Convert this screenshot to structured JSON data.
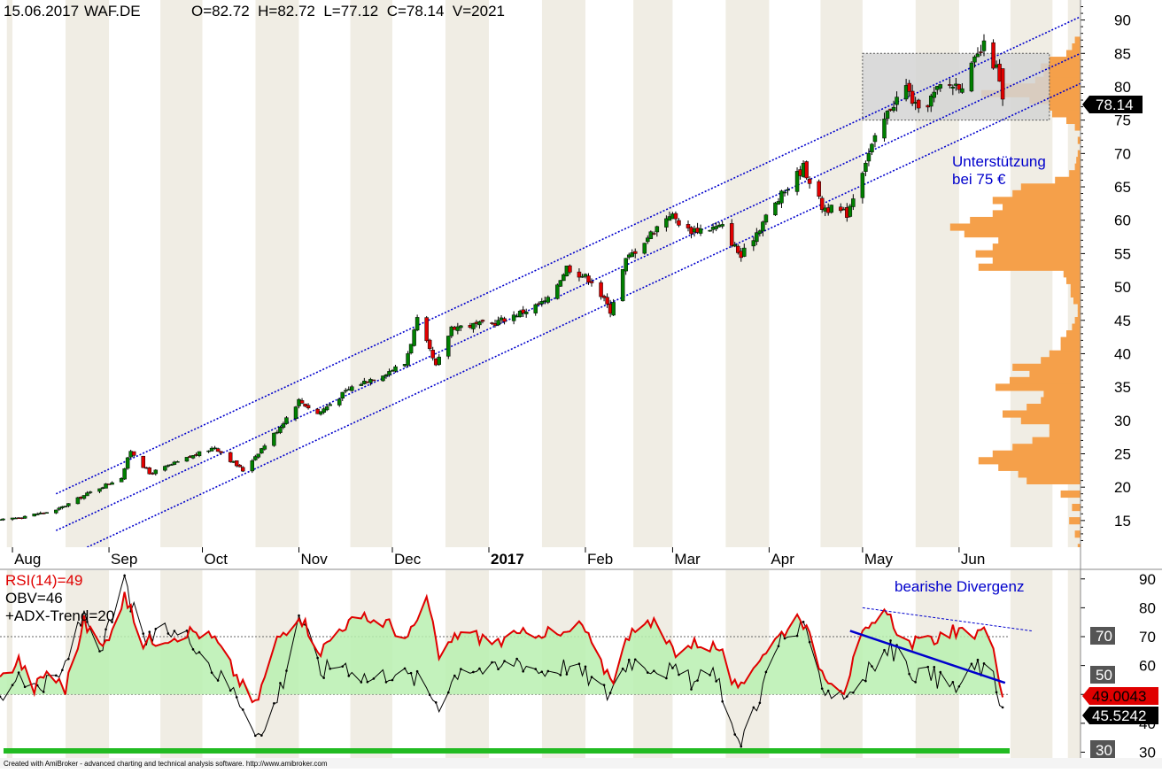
{
  "header": {
    "date": "15.06.2017",
    "symbol": "WAF.DE",
    "ohlcv": "O=82.72  H=82.72  L=77.12  C=78.14  V=2021"
  },
  "price_panel": {
    "y_ticks": [
      15,
      20,
      25,
      30,
      35,
      40,
      45,
      50,
      55,
      60,
      65,
      70,
      75,
      80,
      85,
      90
    ],
    "last_price_label": "78.14",
    "annotation_line1": "Unterstützung",
    "annotation_line2": "bei 75 €",
    "months": [
      "Aug",
      "Sep",
      "Oct",
      "Nov",
      "Dec",
      "2017",
      "Feb",
      "Mar",
      "Apr",
      "May",
      "Jun"
    ]
  },
  "indicator_panel": {
    "rsi_label": "RSI(14)=49",
    "obv_label": "OBV=46",
    "adx_label": "+ADX-Trend=20",
    "annotation": "bearishe Divergenz",
    "y_ticks": [
      30,
      40,
      50,
      60,
      70,
      80,
      90
    ],
    "level_labels": [
      "70",
      "50",
      "30"
    ],
    "rsi_value_label": "49.0043",
    "obv_value_label": "45.5242"
  },
  "footer": "Created with AmiBroker - advanced charting and technical analysis software. http://www.amibroker.com",
  "colors": {
    "up_candle": "#008000",
    "down_candle": "#e00000",
    "channel": "#0000cc",
    "volume_profile": "#f5a04a",
    "rsi_line": "#e00000",
    "obv_line": "#000000",
    "rsi_fill": "#b8f0b0",
    "band_shade": "#f0ede4"
  },
  "chart_data": [
    {
      "type": "candlestick",
      "title": "15.06.2017 WAF.DE",
      "ylim": [
        11,
        93
      ],
      "x_range": [
        "2016-07-28",
        "2017-07-10"
      ],
      "price_waypoints": [
        [
          "2016-07-28",
          15.0
        ],
        [
          "2016-08-15",
          16.5
        ],
        [
          "2016-08-25",
          19.0
        ],
        [
          "2016-09-05",
          21.5
        ],
        [
          "2016-09-08",
          25.5
        ],
        [
          "2016-09-14",
          22.0
        ],
        [
          "2016-09-27",
          24.5
        ],
        [
          "2016-10-05",
          26.0
        ],
        [
          "2016-10-14",
          22.5
        ],
        [
          "2016-10-25",
          28.5
        ],
        [
          "2016-11-01",
          33.0
        ],
        [
          "2016-11-07",
          31.0
        ],
        [
          "2016-11-18",
          35.0
        ],
        [
          "2016-11-28",
          37.0
        ],
        [
          "2016-12-05",
          38.5
        ],
        [
          "2016-12-09",
          45.0
        ],
        [
          "2016-12-15",
          38.0
        ],
        [
          "2016-12-20",
          44.0
        ],
        [
          "2017-01-02",
          44.5
        ],
        [
          "2017-01-13",
          46.5
        ],
        [
          "2017-01-20",
          48.0
        ],
        [
          "2017-01-26",
          53.0
        ],
        [
          "2017-02-03",
          51.0
        ],
        [
          "2017-02-09",
          46.5
        ],
        [
          "2017-02-14",
          54.0
        ],
        [
          "2017-02-28",
          61.0
        ],
        [
          "2017-03-06",
          58.5
        ],
        [
          "2017-03-17",
          59.0
        ],
        [
          "2017-03-23",
          54.5
        ],
        [
          "2017-03-31",
          60.5
        ],
        [
          "2017-04-07",
          65.0
        ],
        [
          "2017-04-12",
          68.0
        ],
        [
          "2017-04-18",
          62.0
        ],
        [
          "2017-04-26",
          61.0
        ],
        [
          "2017-05-02",
          69.0
        ],
        [
          "2017-05-10",
          77.0
        ],
        [
          "2017-05-15",
          80.0
        ],
        [
          "2017-05-19",
          76.0
        ],
        [
          "2017-05-26",
          80.0
        ],
        [
          "2017-06-02",
          80.5
        ],
        [
          "2017-06-09",
          86.0
        ],
        [
          "2017-06-13",
          82.7
        ],
        [
          "2017-06-15",
          78.14
        ]
      ],
      "last_bar": {
        "date": "2017-06-15",
        "open": 82.72,
        "high": 82.72,
        "low": 77.12,
        "close": 78.14,
        "volume": 2021
      },
      "channel_lines": [
        [
          [
            "2016-08-15",
            19.0
          ],
          [
            "2017-07-10",
            90.5
          ]
        ],
        [
          [
            "2016-08-15",
            13.5
          ],
          [
            "2017-07-10",
            85.0
          ]
        ],
        [
          [
            "2016-08-25",
            11.0
          ],
          [
            "2017-07-10",
            80.5
          ]
        ]
      ],
      "support_box": {
        "x": [
          "2017-05-01",
          "2017-06-30"
        ],
        "y": [
          75.0,
          85.0
        ]
      },
      "volume_profile": [
        [
          11,
          0.02
        ],
        [
          13,
          0.04
        ],
        [
          15,
          0.08
        ],
        [
          17,
          0.06
        ],
        [
          19,
          0.14
        ],
        [
          21,
          0.38
        ],
        [
          22,
          0.44
        ],
        [
          23,
          0.58
        ],
        [
          24,
          0.72
        ],
        [
          25,
          0.62
        ],
        [
          26,
          0.48
        ],
        [
          27,
          0.34
        ],
        [
          28,
          0.22
        ],
        [
          29,
          0.22
        ],
        [
          30,
          0.42
        ],
        [
          31,
          0.55
        ],
        [
          32,
          0.38
        ],
        [
          33,
          0.28
        ],
        [
          34,
          0.26
        ],
        [
          35,
          0.6
        ],
        [
          36,
          0.5
        ],
        [
          37,
          0.36
        ],
        [
          38,
          0.48
        ],
        [
          39,
          0.28
        ],
        [
          40,
          0.22
        ],
        [
          41,
          0.14
        ],
        [
          42,
          0.14
        ],
        [
          43,
          0.1
        ],
        [
          44,
          0.06
        ],
        [
          45,
          0.04
        ],
        [
          46,
          0.02
        ],
        [
          47,
          0.02
        ],
        [
          48,
          0.05
        ],
        [
          49,
          0.07
        ],
        [
          50,
          0.07
        ],
        [
          51,
          0.1
        ],
        [
          52,
          0.12
        ],
        [
          53,
          0.72
        ],
        [
          54,
          0.62
        ],
        [
          55,
          0.74
        ],
        [
          56,
          0.62
        ],
        [
          57,
          0.58
        ],
        [
          58,
          0.82
        ],
        [
          59,
          0.92
        ],
        [
          60,
          0.78
        ],
        [
          61,
          0.62
        ],
        [
          62,
          0.55
        ],
        [
          63,
          0.62
        ],
        [
          64,
          0.48
        ],
        [
          65,
          0.42
        ],
        [
          66,
          0.18
        ],
        [
          67,
          0.08
        ],
        [
          68,
          0.04
        ],
        [
          69,
          0.03
        ],
        [
          70,
          0.02
        ],
        [
          72,
          0.02
        ],
        [
          74,
          0.04
        ],
        [
          75,
          0.1
        ],
        [
          76,
          0.2
        ],
        [
          77,
          0.22
        ],
        [
          78,
          0.36
        ],
        [
          79,
          0.7
        ],
        [
          80,
          0.54
        ],
        [
          81,
          0.32
        ],
        [
          82,
          0.26
        ],
        [
          83,
          0.28
        ],
        [
          84,
          0.22
        ],
        [
          85,
          0.1
        ],
        [
          86,
          0.06
        ],
        [
          87,
          0.04
        ]
      ]
    },
    {
      "type": "line",
      "title": "RSI(14) / OBV / +ADX-Trend",
      "ylim": [
        28,
        93
      ],
      "reference_lines": [
        70,
        50
      ],
      "series": [
        {
          "name": "RSI(14)",
          "last": 49.0043,
          "points": [
            [
              "2016-07-28",
              55
            ],
            [
              "2016-08-03",
              62
            ],
            [
              "2016-08-08",
              52
            ],
            [
              "2016-08-12",
              58
            ],
            [
              "2016-08-18",
              52
            ],
            [
              "2016-08-24",
              75
            ],
            [
              "2016-08-30",
              66
            ],
            [
              "2016-09-06",
              84
            ],
            [
              "2016-09-12",
              68
            ],
            [
              "2016-09-20",
              70
            ],
            [
              "2016-09-28",
              72
            ],
            [
              "2016-10-05",
              69
            ],
            [
              "2016-10-11",
              58
            ],
            [
              "2016-10-18",
              46
            ],
            [
              "2016-10-25",
              69
            ],
            [
              "2016-11-01",
              78
            ],
            [
              "2016-11-08",
              65
            ],
            [
              "2016-11-15",
              74
            ],
            [
              "2016-11-22",
              76
            ],
            [
              "2016-11-29",
              75
            ],
            [
              "2016-12-06",
              69
            ],
            [
              "2016-12-12",
              83
            ],
            [
              "2016-12-16",
              63
            ],
            [
              "2016-12-23",
              72
            ],
            [
              "2017-01-03",
              68
            ],
            [
              "2017-01-10",
              70
            ],
            [
              "2017-01-17",
              72
            ],
            [
              "2017-01-24",
              70
            ],
            [
              "2017-01-31",
              74
            ],
            [
              "2017-02-06",
              60
            ],
            [
              "2017-02-10",
              56
            ],
            [
              "2017-02-16",
              74
            ],
            [
              "2017-02-23",
              74
            ],
            [
              "2017-03-02",
              65
            ],
            [
              "2017-03-09",
              68
            ],
            [
              "2017-03-16",
              66
            ],
            [
              "2017-03-22",
              50
            ],
            [
              "2017-03-28",
              62
            ],
            [
              "2017-04-04",
              70
            ],
            [
              "2017-04-11",
              78
            ],
            [
              "2017-04-18",
              58
            ],
            [
              "2017-04-25",
              52
            ],
            [
              "2017-05-01",
              70
            ],
            [
              "2017-05-09",
              78
            ],
            [
              "2017-05-15",
              68
            ],
            [
              "2017-05-22",
              68
            ],
            [
              "2017-05-29",
              72
            ],
            [
              "2017-06-05",
              70
            ],
            [
              "2017-06-09",
              75
            ],
            [
              "2017-06-12",
              64
            ],
            [
              "2017-06-15",
              49
            ]
          ]
        },
        {
          "name": "OBV",
          "last": 45.5242,
          "points": [
            [
              "2016-07-28",
              48
            ],
            [
              "2016-08-03",
              58
            ],
            [
              "2016-08-09",
              52
            ],
            [
              "2016-08-16",
              55
            ],
            [
              "2016-08-24",
              78
            ],
            [
              "2016-08-30",
              66
            ],
            [
              "2016-09-06",
              89
            ],
            [
              "2016-09-12",
              68
            ],
            [
              "2016-09-20",
              72
            ],
            [
              "2016-09-28",
              69
            ],
            [
              "2016-10-05",
              58
            ],
            [
              "2016-10-12",
              50
            ],
            [
              "2016-10-20",
              35
            ],
            [
              "2016-10-27",
              55
            ],
            [
              "2016-11-01",
              78
            ],
            [
              "2016-11-08",
              58
            ],
            [
              "2016-11-15",
              61
            ],
            [
              "2016-11-24",
              55
            ],
            [
              "2016-12-01",
              58
            ],
            [
              "2016-12-09",
              55
            ],
            [
              "2016-12-16",
              47
            ],
            [
              "2016-12-23",
              60
            ],
            [
              "2017-01-02",
              58
            ],
            [
              "2017-01-10",
              62
            ],
            [
              "2017-01-18",
              58
            ],
            [
              "2017-01-26",
              60
            ],
            [
              "2017-02-02",
              56
            ],
            [
              "2017-02-08",
              50
            ],
            [
              "2017-02-15",
              62
            ],
            [
              "2017-02-22",
              60
            ],
            [
              "2017-03-01",
              58
            ],
            [
              "2017-03-08",
              54
            ],
            [
              "2017-03-15",
              58
            ],
            [
              "2017-03-22",
              32
            ],
            [
              "2017-03-29",
              50
            ],
            [
              "2017-04-05",
              70
            ],
            [
              "2017-04-12",
              72
            ],
            [
              "2017-04-19",
              52
            ],
            [
              "2017-04-26",
              50
            ],
            [
              "2017-05-03",
              58
            ],
            [
              "2017-05-10",
              66
            ],
            [
              "2017-05-17",
              58
            ],
            [
              "2017-05-24",
              56
            ],
            [
              "2017-05-31",
              52
            ],
            [
              "2017-06-07",
              60
            ],
            [
              "2017-06-12",
              55
            ],
            [
              "2017-06-15",
              45.5
            ]
          ]
        },
        {
          "name": "+ADX-Trend",
          "last": 20
        }
      ],
      "divergence": {
        "price_line": [
          [
            "2017-05-01",
            78
          ],
          [
            "2017-06-30",
            72
          ]
        ],
        "indicator_line": [
          [
            "2017-04-27",
            72
          ],
          [
            "2017-06-30",
            54
          ]
        ]
      }
    }
  ]
}
